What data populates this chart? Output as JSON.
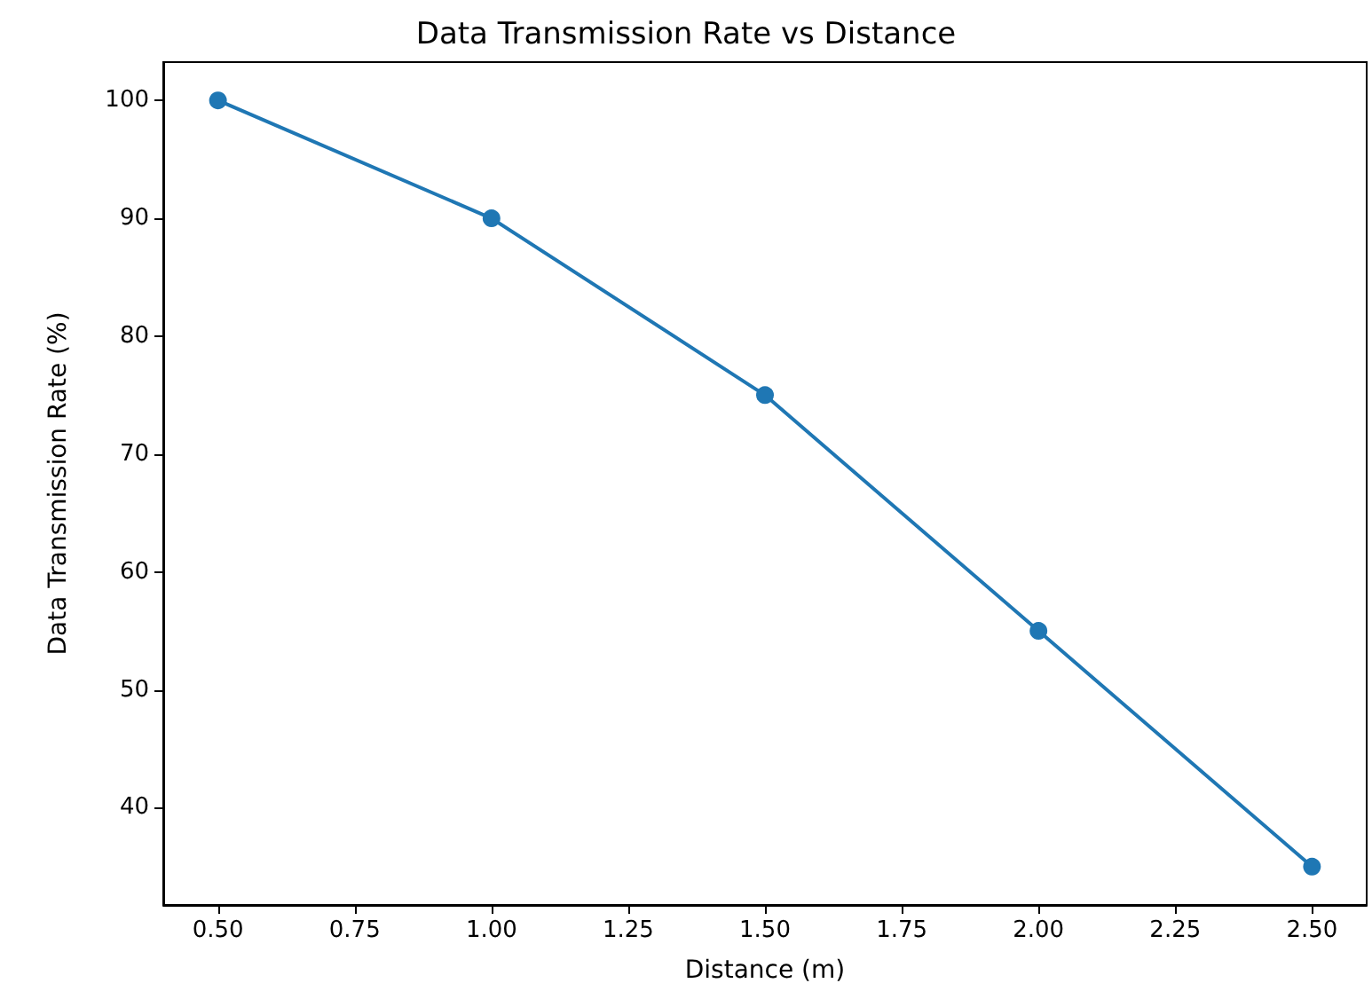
{
  "chart_data": {
    "type": "line",
    "title": "Data Transmission Rate vs Distance",
    "xlabel": "Distance (m)",
    "ylabel": "Data Transmission Rate (%)",
    "x": [
      0.5,
      1.0,
      1.5,
      2.0,
      2.5
    ],
    "series": [
      {
        "color": "#1f77b4",
        "values": [
          100,
          90,
          75,
          55,
          35
        ]
      }
    ],
    "xlim": [
      0.4,
      2.6
    ],
    "ylim": [
      31.75,
      103.25
    ],
    "xticks": [
      {
        "value": 0.5,
        "label": "0.50"
      },
      {
        "value": 0.75,
        "label": "0.75"
      },
      {
        "value": 1.0,
        "label": "1.00"
      },
      {
        "value": 1.25,
        "label": "1.25"
      },
      {
        "value": 1.5,
        "label": "1.50"
      },
      {
        "value": 1.75,
        "label": "1.75"
      },
      {
        "value": 2.0,
        "label": "2.00"
      },
      {
        "value": 2.25,
        "label": "2.25"
      },
      {
        "value": 2.5,
        "label": "2.50"
      }
    ],
    "yticks": [
      40,
      50,
      60,
      70,
      80,
      90,
      100
    ],
    "grid": false,
    "marker": "circle",
    "line_style": "solid"
  }
}
